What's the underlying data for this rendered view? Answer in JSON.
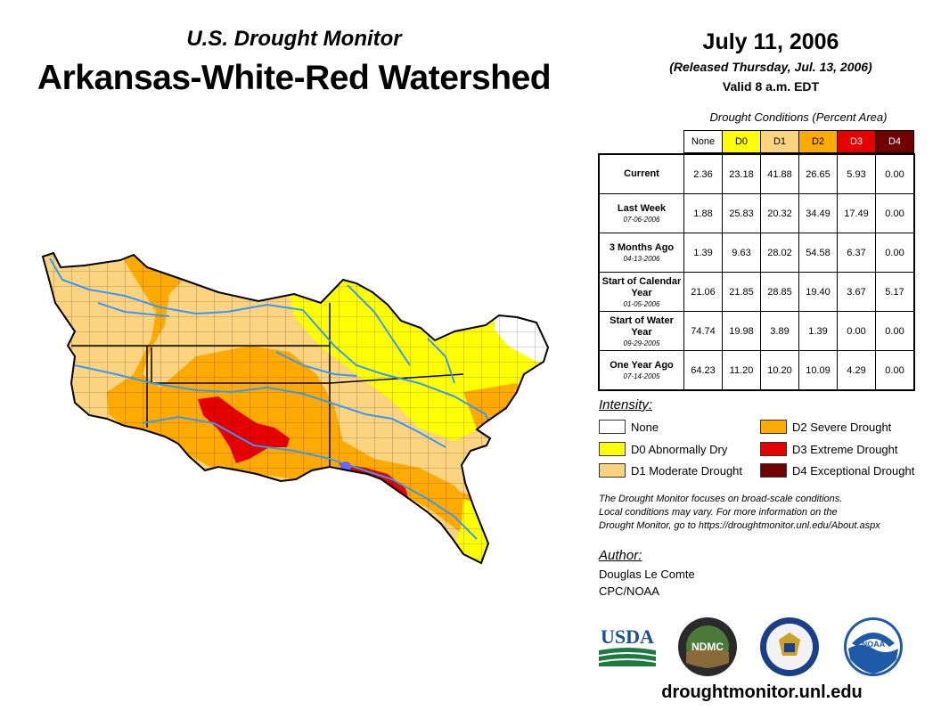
{
  "header": {
    "subtitle": "U.S. Drought Monitor",
    "title": "Arkansas-White-Red Watershed",
    "date": "July 11, 2006",
    "released": "(Released Thursday, Jul. 13, 2006)",
    "valid": "Valid 8 a.m. EDT"
  },
  "table": {
    "caption": "Drought Conditions (Percent Area)",
    "columns": [
      "None",
      "D0",
      "D1",
      "D2",
      "D3",
      "D4"
    ],
    "column_colors": [
      "#ffffff",
      "#ffff00",
      "#fcd37f",
      "#ffaa00",
      "#e60000",
      "#730000"
    ],
    "rows": [
      {
        "label": "Current",
        "date": "",
        "values": [
          "2.36",
          "23.18",
          "41.88",
          "26.65",
          "5.93",
          "0.00"
        ]
      },
      {
        "label": "Last Week",
        "date": "07-06-2006",
        "values": [
          "1.88",
          "25.83",
          "20.32",
          "34.49",
          "17.49",
          "0.00"
        ]
      },
      {
        "label": "3 Months Ago",
        "date": "04-13-2006",
        "values": [
          "1.39",
          "9.63",
          "28.02",
          "54.58",
          "6.37",
          "0.00"
        ]
      },
      {
        "label": "Start of Calendar Year",
        "date": "01-05-2006",
        "values": [
          "21.06",
          "21.85",
          "28.85",
          "19.40",
          "3.67",
          "5.17"
        ]
      },
      {
        "label": "Start of Water Year",
        "date": "09-29-2005",
        "values": [
          "74.74",
          "19.98",
          "3.89",
          "1.39",
          "0.00",
          "0.00"
        ]
      },
      {
        "label": "One Year Ago",
        "date": "07-14-2005",
        "values": [
          "64.23",
          "11.20",
          "10.20",
          "10.09",
          "4.29",
          "0.00"
        ]
      }
    ]
  },
  "legend": {
    "title": "Intensity:",
    "items": [
      {
        "label": "None",
        "color": "#ffffff"
      },
      {
        "label": "D0 Abnormally Dry",
        "color": "#ffff00"
      },
      {
        "label": "D1 Moderate Drought",
        "color": "#fcd37f"
      },
      {
        "label": "D2 Severe Drought",
        "color": "#ffaa00"
      },
      {
        "label": "D3 Extreme Drought",
        "color": "#e60000"
      },
      {
        "label": "D4 Exceptional Drought",
        "color": "#730000"
      }
    ]
  },
  "note": {
    "line1": "The Drought Monitor focuses on broad-scale conditions.",
    "line2": "Local conditions may vary. For more information on the",
    "line3": "Drought Monitor, go to https://droughtmonitor.unl.edu/About.aspx"
  },
  "author": {
    "label": "Author:",
    "name": "Douglas Le Comte",
    "org": "CPC/NOAA"
  },
  "logos": {
    "usda": "USDA",
    "ndmc": "NDMC",
    "noaa": "NOAA"
  },
  "footer": {
    "url": "droughtmonitor.unl.edu"
  },
  "map": {
    "colors": {
      "none": "#ffffff",
      "d0": "#ffff00",
      "d1": "#fcd37f",
      "d2": "#ffaa00",
      "d3": "#e60000",
      "river": "#3399ff",
      "county": "#000000"
    }
  }
}
